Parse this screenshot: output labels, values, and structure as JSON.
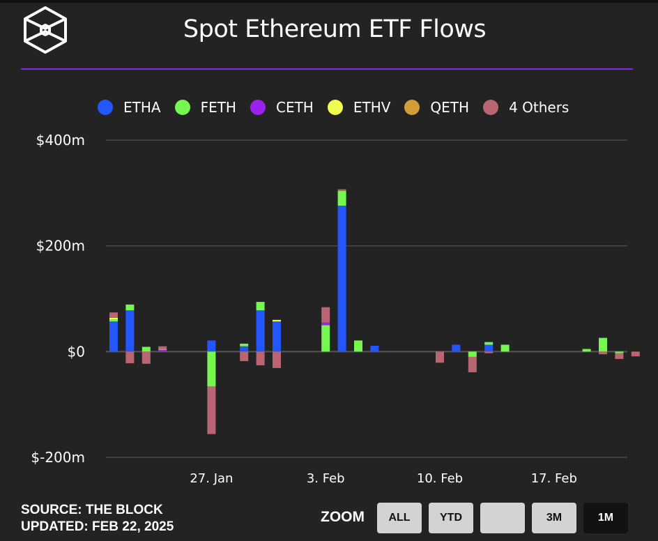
{
  "header": {
    "title": "Spot Ethereum ETF Flows",
    "logo_icon": "the-block-cube-logo"
  },
  "colors": {
    "background": "#232323",
    "accent_rule": "#8a22e0",
    "gridline": "#4a4a4a"
  },
  "footer": {
    "source": "SOURCE: THE BLOCK",
    "updated": "UPDATED: FEB 22, 2025"
  },
  "zoom": {
    "label": "ZOOM",
    "buttons": [
      {
        "label": "ALL",
        "active": false
      },
      {
        "label": "YTD",
        "active": false
      },
      {
        "label": "",
        "active": false
      },
      {
        "label": "3M",
        "active": false
      },
      {
        "label": "1M",
        "active": true
      }
    ]
  },
  "chart_data": {
    "type": "bar",
    "stacked": true,
    "title": "Spot Ethereum ETF Flows",
    "xlabel": "",
    "ylabel": "",
    "ylim": [
      -200,
      400
    ],
    "y_unit": "$m",
    "yticks": [
      {
        "value": 400,
        "label": "$400m"
      },
      {
        "value": 200,
        "label": "$200m"
      },
      {
        "value": 0,
        "label": "$0"
      },
      {
        "value": -200,
        "label": "$-200m"
      }
    ],
    "xticks": [
      {
        "date": "2025-01-27",
        "label": "27. Jan"
      },
      {
        "date": "2025-02-03",
        "label": "3. Feb"
      },
      {
        "date": "2025-02-10",
        "label": "10. Feb"
      },
      {
        "date": "2025-02-17",
        "label": "17. Feb"
      }
    ],
    "grid": true,
    "legend_position": "top",
    "categories": [
      "2025-01-21",
      "2025-01-22",
      "2025-01-23",
      "2025-01-24",
      "2025-01-25",
      "2025-01-26",
      "2025-01-27",
      "2025-01-28",
      "2025-01-29",
      "2025-01-30",
      "2025-01-31",
      "2025-02-01",
      "2025-02-02",
      "2025-02-03",
      "2025-02-04",
      "2025-02-05",
      "2025-02-06",
      "2025-02-07",
      "2025-02-08",
      "2025-02-09",
      "2025-02-10",
      "2025-02-11",
      "2025-02-12",
      "2025-02-13",
      "2025-02-14",
      "2025-02-15",
      "2025-02-16",
      "2025-02-17",
      "2025-02-18",
      "2025-02-19",
      "2025-02-20",
      "2025-02-21",
      "2025-02-22"
    ],
    "series": [
      {
        "name": "ETHA",
        "color": "#2456ff",
        "values": [
          57,
          78,
          0,
          0,
          0,
          0,
          21,
          0,
          10,
          78,
          57,
          0,
          0,
          0,
          276,
          0,
          11,
          0,
          0,
          0,
          0,
          13,
          0,
          13,
          0,
          0,
          0,
          0,
          0,
          0,
          0,
          0,
          0
        ]
      },
      {
        "name": "FETH",
        "color": "#76f74f",
        "values": [
          4,
          11,
          9,
          0,
          0,
          0,
          -66,
          0,
          5,
          16,
          0,
          0,
          0,
          50,
          28,
          21,
          0,
          0,
          0,
          0,
          0,
          0,
          -10,
          5,
          13,
          0,
          0,
          0,
          0,
          5,
          26,
          -3,
          0
        ]
      },
      {
        "name": "CETH",
        "color": "#9b22ee",
        "values": [
          0,
          0,
          0,
          3,
          0,
          0,
          0,
          0,
          0,
          0,
          0,
          0,
          0,
          5,
          0,
          0,
          0,
          0,
          0,
          0,
          0,
          0,
          0,
          0,
          0,
          0,
          0,
          0,
          0,
          0,
          0,
          0,
          0
        ]
      },
      {
        "name": "ETHV",
        "color": "#eefd4f",
        "values": [
          3,
          0,
          0,
          0,
          0,
          0,
          0,
          0,
          0,
          0,
          3,
          0,
          0,
          0,
          0,
          0,
          0,
          0,
          0,
          0,
          0,
          0,
          0,
          0,
          0,
          0,
          0,
          0,
          0,
          0,
          0,
          0,
          0
        ]
      },
      {
        "name": "QETH",
        "color": "#d29c39",
        "values": [
          0,
          0,
          0,
          2,
          0,
          0,
          0,
          0,
          0,
          0,
          0,
          0,
          0,
          0,
          0,
          0,
          0,
          0,
          0,
          0,
          0,
          0,
          0,
          0,
          0,
          0,
          0,
          0,
          0,
          0,
          0,
          0,
          0
        ]
      },
      {
        "name": "4 Others",
        "color": "#ba6672",
        "values": [
          10,
          -22,
          -23,
          5,
          0,
          0,
          -90,
          0,
          -18,
          -26,
          -31,
          0,
          0,
          29,
          3,
          0,
          0,
          0,
          0,
          0,
          -21,
          0,
          -29,
          -3,
          0,
          0,
          0,
          0,
          0,
          0,
          -5,
          -11,
          -9
        ]
      }
    ]
  }
}
